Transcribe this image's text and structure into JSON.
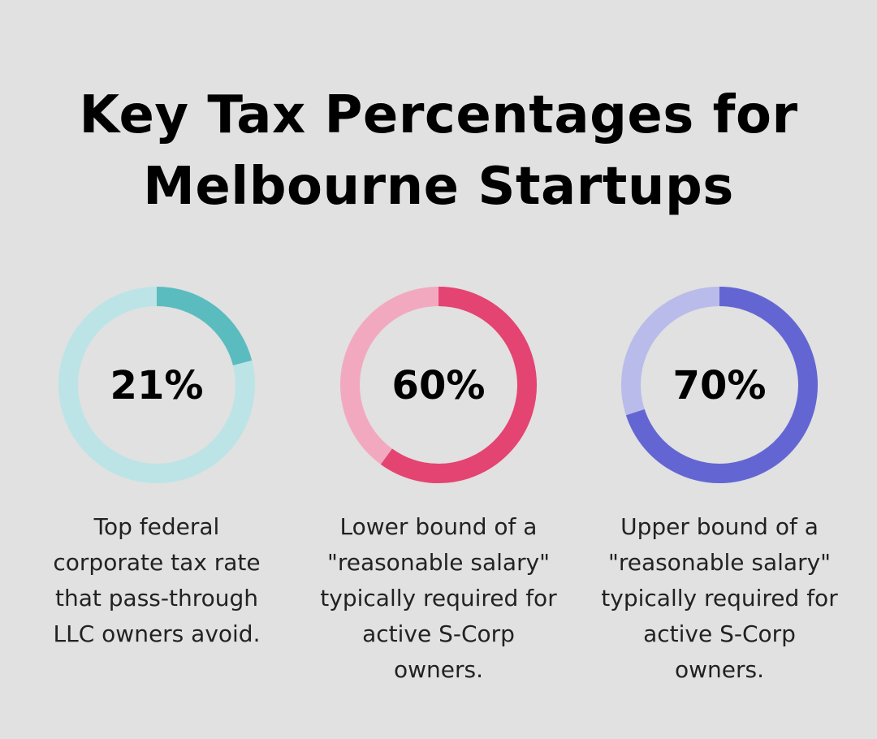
{
  "title_line1": "Key Tax Percentages for",
  "title_line2": "Melbourne Startups",
  "chart_data": [
    {
      "type": "pie",
      "style": "donut",
      "value": 21,
      "values": [
        21,
        79
      ],
      "label": "21%",
      "description": "Top federal corporate tax rate that pass-through LLC owners avoid.",
      "colors": {
        "fill": "#5bbcc0",
        "track": "#bce4e6"
      }
    },
    {
      "type": "pie",
      "style": "donut",
      "value": 60,
      "values": [
        60,
        40
      ],
      "label": "60%",
      "description": "Lower bound of a \"reasonable salary\" typically required for active S-Corp owners.",
      "colors": {
        "fill": "#e44472",
        "track": "#f2a9c0"
      }
    },
    {
      "type": "pie",
      "style": "donut",
      "value": 70,
      "values": [
        70,
        30
      ],
      "label": "70%",
      "description": "Upper bound of a \"reasonable salary\" typically required for active S-Corp owners.",
      "colors": {
        "fill": "#6366d2",
        "track": "#b9bbea"
      }
    }
  ],
  "background": "#e0e1e0"
}
